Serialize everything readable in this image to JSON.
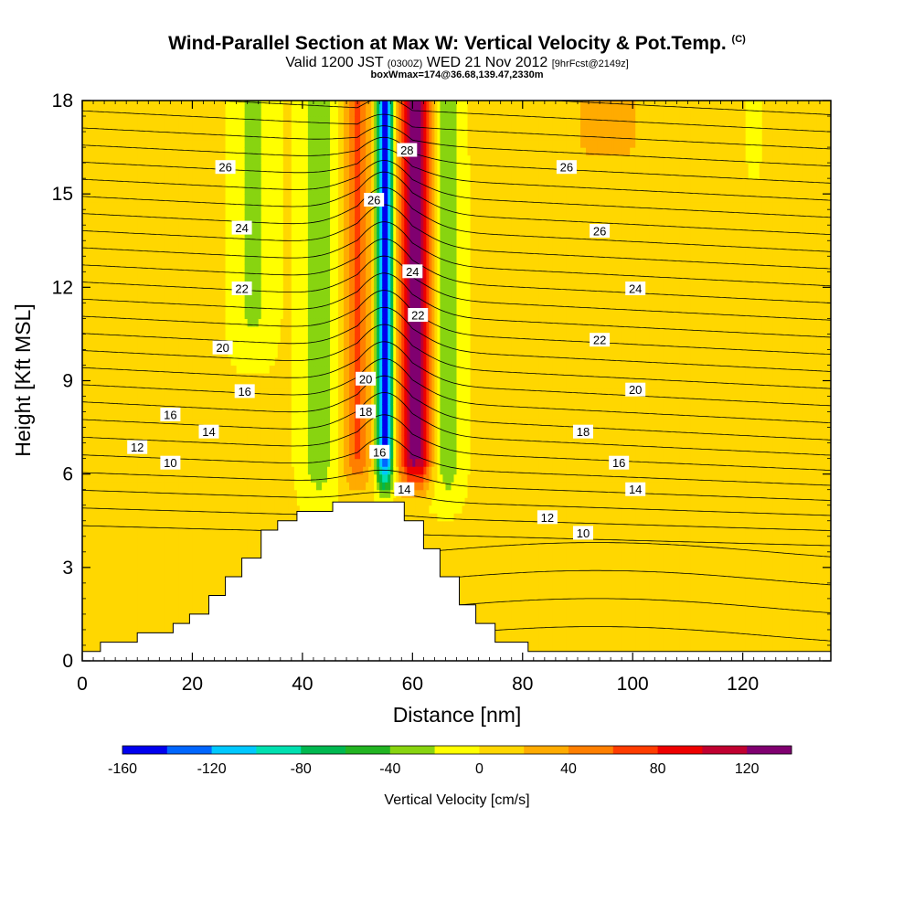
{
  "titles": {
    "main": "Wind-Parallel Section at Max W: Vertical Velocity & Pot.Temp.",
    "copyright": "(C)",
    "valid_prefix": "Valid 1200 JST",
    "valid_zulu": "(0300Z)",
    "valid_date": "WED 21 Nov 2012",
    "forecast": "[9hrFcst@2149z]",
    "box": "boxWmax=174@36.68,139.47,2330m"
  },
  "chart_data": {
    "type": "heatmap",
    "xlabel": "Distance [nm]",
    "ylabel": "Height [Kft MSL]",
    "xlim": [
      0,
      136
    ],
    "ylim": [
      0,
      18
    ],
    "x_ticks": [
      0,
      20,
      40,
      60,
      80,
      100,
      120
    ],
    "y_ticks": [
      0,
      3,
      6,
      9,
      12,
      15,
      18
    ],
    "grid": false,
    "colorbar": {
      "label": "Vertical Velocity [cm/s]",
      "position": "bottom",
      "range": [
        -160,
        140
      ],
      "step": 20,
      "tick_labels": [
        -160,
        -120,
        -80,
        -40,
        0,
        40,
        80,
        120
      ],
      "colors": [
        "#0000ee",
        "#0066ff",
        "#00c8ff",
        "#00e0b0",
        "#00b850",
        "#22b422",
        "#88d410",
        "#ffff00",
        "#ffd700",
        "#ffab00",
        "#ff7f00",
        "#ff3c00",
        "#ee0000",
        "#c00030",
        "#800070"
      ]
    },
    "terrain_profile": [
      [
        0,
        0.3
      ],
      [
        3.3,
        0.3
      ],
      [
        3.3,
        0.6
      ],
      [
        10,
        0.6
      ],
      [
        10,
        0.9
      ],
      [
        16.5,
        0.9
      ],
      [
        16.5,
        1.2
      ],
      [
        19.5,
        1.2
      ],
      [
        19.5,
        1.5
      ],
      [
        23,
        1.5
      ],
      [
        23,
        2.1
      ],
      [
        26,
        2.1
      ],
      [
        26,
        2.7
      ],
      [
        29,
        2.7
      ],
      [
        29,
        3.3
      ],
      [
        32.5,
        3.3
      ],
      [
        32.5,
        4.2
      ],
      [
        35.5,
        4.2
      ],
      [
        35.5,
        4.5
      ],
      [
        39,
        4.5
      ],
      [
        39,
        4.8
      ],
      [
        45.5,
        4.8
      ],
      [
        45.5,
        5.1
      ],
      [
        58.5,
        5.1
      ],
      [
        58.5,
        4.5
      ],
      [
        62,
        4.5
      ],
      [
        62,
        3.6
      ],
      [
        65,
        3.6
      ],
      [
        65,
        2.7
      ],
      [
        68.5,
        2.7
      ],
      [
        68.5,
        1.8
      ],
      [
        71.5,
        1.8
      ],
      [
        71.5,
        1.2
      ],
      [
        75,
        1.2
      ],
      [
        75,
        0.6
      ],
      [
        81,
        0.6
      ],
      [
        81,
        0.3
      ],
      [
        136,
        0.3
      ]
    ],
    "theta_contours": {
      "interval": 1,
      "labels": [
        {
          "value": "10",
          "x": 16,
          "y": 6.35
        },
        {
          "value": "12",
          "x": 10,
          "y": 6.85
        },
        {
          "value": "14",
          "x": 23,
          "y": 7.35
        },
        {
          "value": "16",
          "x": 16,
          "y": 7.9
        },
        {
          "value": "16",
          "x": 29.5,
          "y": 8.65
        },
        {
          "value": "20",
          "x": 25.5,
          "y": 10.05
        },
        {
          "value": "22",
          "x": 29,
          "y": 11.95
        },
        {
          "value": "24",
          "x": 29,
          "y": 13.9
        },
        {
          "value": "26",
          "x": 26,
          "y": 15.85
        },
        {
          "value": "28",
          "x": 59,
          "y": 16.4
        },
        {
          "value": "26",
          "x": 53,
          "y": 14.8
        },
        {
          "value": "24",
          "x": 60,
          "y": 12.5
        },
        {
          "value": "22",
          "x": 61,
          "y": 11.1
        },
        {
          "value": "20",
          "x": 51.5,
          "y": 9.05
        },
        {
          "value": "18",
          "x": 51.5,
          "y": 8.0
        },
        {
          "value": "16",
          "x": 54,
          "y": 6.7
        },
        {
          "value": "14",
          "x": 58.5,
          "y": 5.5
        },
        {
          "value": "26",
          "x": 88,
          "y": 15.85
        },
        {
          "value": "26",
          "x": 94,
          "y": 13.8
        },
        {
          "value": "24",
          "x": 100.5,
          "y": 11.95
        },
        {
          "value": "22",
          "x": 94,
          "y": 10.3
        },
        {
          "value": "20",
          "x": 100.5,
          "y": 8.7
        },
        {
          "value": "18",
          "x": 91,
          "y": 7.35
        },
        {
          "value": "16",
          "x": 97.5,
          "y": 6.35
        },
        {
          "value": "14",
          "x": 100.5,
          "y": 5.5
        },
        {
          "value": "12",
          "x": 84.5,
          "y": 4.6
        },
        {
          "value": "10",
          "x": 91,
          "y": 4.1
        }
      ]
    }
  }
}
